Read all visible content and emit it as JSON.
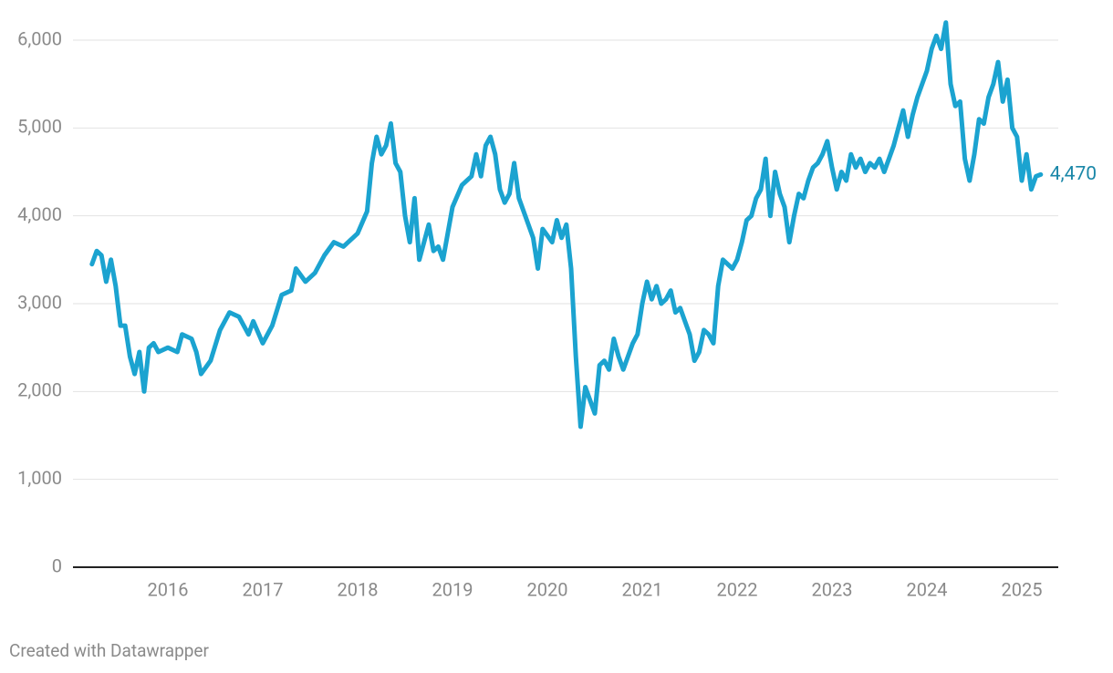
{
  "chart_data": {
    "type": "line",
    "x": [
      2015.2,
      2015.25,
      2015.3,
      2015.35,
      2015.4,
      2015.45,
      2015.5,
      2015.55,
      2015.6,
      2015.65,
      2015.7,
      2015.75,
      2015.8,
      2015.85,
      2015.9,
      2016.0,
      2016.1,
      2016.15,
      2016.25,
      2016.3,
      2016.35,
      2016.45,
      2016.55,
      2016.65,
      2016.75,
      2016.85,
      2016.9,
      2017.0,
      2017.1,
      2017.2,
      2017.3,
      2017.35,
      2017.45,
      2017.55,
      2017.65,
      2017.75,
      2017.85,
      2017.95,
      2018.0,
      2018.1,
      2018.15,
      2018.2,
      2018.25,
      2018.3,
      2018.35,
      2018.4,
      2018.45,
      2018.5,
      2018.55,
      2018.6,
      2018.65,
      2018.7,
      2018.75,
      2018.8,
      2018.85,
      2018.9,
      2018.95,
      2019.0,
      2019.1,
      2019.2,
      2019.25,
      2019.3,
      2019.35,
      2019.4,
      2019.45,
      2019.5,
      2019.55,
      2019.6,
      2019.65,
      2019.7,
      2019.8,
      2019.85,
      2019.9,
      2019.95,
      2020.05,
      2020.1,
      2020.15,
      2020.2,
      2020.25,
      2020.3,
      2020.35,
      2020.4,
      2020.45,
      2020.5,
      2020.55,
      2020.6,
      2020.65,
      2020.7,
      2020.75,
      2020.8,
      2020.85,
      2020.9,
      2020.95,
      2021.0,
      2021.05,
      2021.1,
      2021.15,
      2021.2,
      2021.25,
      2021.3,
      2021.35,
      2021.4,
      2021.45,
      2021.5,
      2021.55,
      2021.6,
      2021.65,
      2021.7,
      2021.75,
      2021.8,
      2021.85,
      2021.9,
      2021.95,
      2022.0,
      2022.05,
      2022.1,
      2022.15,
      2022.2,
      2022.25,
      2022.3,
      2022.35,
      2022.4,
      2022.45,
      2022.5,
      2022.55,
      2022.6,
      2022.65,
      2022.7,
      2022.75,
      2022.8,
      2022.85,
      2022.9,
      2022.95,
      2023.0,
      2023.05,
      2023.1,
      2023.15,
      2023.2,
      2023.25,
      2023.3,
      2023.35,
      2023.4,
      2023.45,
      2023.5,
      2023.55,
      2023.6,
      2023.65,
      2023.7,
      2023.75,
      2023.8,
      2023.85,
      2023.9,
      2023.95,
      2024.0,
      2024.05,
      2024.1,
      2024.15,
      2024.2,
      2024.25,
      2024.3,
      2024.35,
      2024.4,
      2024.45,
      2024.5,
      2024.55,
      2024.6,
      2024.65,
      2024.7,
      2024.75,
      2024.8,
      2024.85,
      2024.9,
      2024.95,
      2025.0,
      2025.05,
      2025.1,
      2025.15,
      2025.2
    ],
    "series": [
      {
        "name": null,
        "color": "#1ba3d0",
        "values": [
          3450,
          3600,
          3550,
          3250,
          3500,
          3200,
          2750,
          2750,
          2400,
          2200,
          2450,
          2000,
          2500,
          2550,
          2450,
          2500,
          2450,
          2650,
          2600,
          2450,
          2200,
          2350,
          2700,
          2900,
          2850,
          2650,
          2800,
          2550,
          2750,
          3100,
          3150,
          3400,
          3250,
          3350,
          3550,
          3700,
          3650,
          3750,
          3800,
          4050,
          4600,
          4900,
          4700,
          4800,
          5050,
          4600,
          4500,
          4000,
          3700,
          4200,
          3500,
          3700,
          3900,
          3600,
          3650,
          3500,
          3800,
          4100,
          4350,
          4450,
          4700,
          4450,
          4800,
          4900,
          4700,
          4300,
          4150,
          4250,
          4600,
          4200,
          3900,
          3750,
          3400,
          3850,
          3700,
          3950,
          3750,
          3900,
          3400,
          2400,
          1600,
          2050,
          1900,
          1750,
          2300,
          2350,
          2250,
          2600,
          2400,
          2250,
          2400,
          2550,
          2650,
          3000,
          3250,
          3050,
          3200,
          3000,
          3050,
          3150,
          2900,
          2950,
          2800,
          2650,
          2350,
          2450,
          2700,
          2650,
          2550,
          3200,
          3500,
          3450,
          3400,
          3500,
          3700,
          3950,
          4000,
          4200,
          4300,
          4650,
          4000,
          4500,
          4250,
          4100,
          3700,
          4000,
          4250,
          4200,
          4400,
          4550,
          4600,
          4700,
          4850,
          4550,
          4300,
          4500,
          4400,
          4700,
          4550,
          4650,
          4500,
          4600,
          4550,
          4650,
          4500,
          4650,
          4800,
          5000,
          5200,
          4900,
          5150,
          5350,
          5500,
          5650,
          5900,
          6050,
          5900,
          6200,
          5500,
          5250,
          5300,
          4650,
          4400,
          4700,
          5100,
          5050,
          5350,
          5500,
          5750,
          5300,
          5550,
          5000,
          4900,
          4400,
          4700,
          4300,
          4450,
          4470
        ]
      }
    ],
    "annotations": [
      {
        "x": 2025.2,
        "y": 4470,
        "label": "4,470",
        "color": "#1a87a8"
      }
    ],
    "xlim": [
      2015,
      2025.385
    ],
    "xticks": [
      2016,
      2017,
      2018,
      2019,
      2020,
      2021,
      2022,
      2023,
      2024,
      2025
    ],
    "ylim": [
      0,
      6000
    ],
    "yticks": [
      0,
      {
        "value": 1000,
        "label": "1,000"
      },
      {
        "value": 2000,
        "label": "2,000"
      },
      {
        "value": 3000,
        "label": "3,000"
      },
      {
        "value": 4000,
        "label": "4,000"
      },
      {
        "value": 5000,
        "label": "5,000"
      },
      {
        "value": 6000,
        "label": "6,000"
      }
    ],
    "grid": true,
    "credit": "Created with Datawrapper"
  }
}
